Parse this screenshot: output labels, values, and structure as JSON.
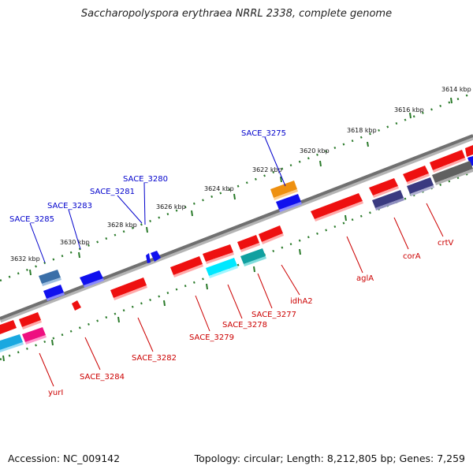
{
  "title": "Saccharopolyspora erythraea NRRL 2338, complete genome",
  "accession": "Accession: NC_009142",
  "summary": "Topology: circular; Length: 8,212,805 bp; Genes: 7,259",
  "colors": {
    "forward": "#1010ee",
    "reverse": "#ee1010",
    "backbone": "#808080",
    "tick": "#2a7a2a",
    "forward_label": "#0000cc",
    "reverse_label": "#cc0000"
  },
  "ticks": [
    "3614 kbp",
    "3616 kbp",
    "3618 kbp",
    "3620 kbp",
    "3622 kbp",
    "3624 kbp",
    "3626 kbp",
    "3628 kbp",
    "3630 kbp",
    "3632 kbp"
  ],
  "forward_labels": [
    "SACE_3275",
    "SACE_3280",
    "SACE_3281",
    "SACE_3283",
    "SACE_3285"
  ],
  "reverse_labels": [
    "crtV",
    "corA",
    "aglA",
    "idhA2",
    "SACE_3277",
    "SACE_3278",
    "SACE_3279",
    "SACE_3282",
    "SACE_3284",
    "yurI"
  ]
}
